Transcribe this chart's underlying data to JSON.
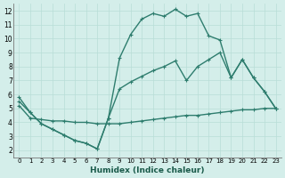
{
  "xlabel": "Humidex (Indice chaleur)",
  "background_color": "#d4eeea",
  "line_color": "#2e7d6e",
  "grid_color": "#b8ddd7",
  "xlim": [
    -0.5,
    23.5
  ],
  "ylim": [
    1.5,
    12.5
  ],
  "xticks": [
    0,
    1,
    2,
    3,
    4,
    5,
    6,
    7,
    8,
    9,
    10,
    11,
    12,
    13,
    14,
    15,
    16,
    17,
    18,
    19,
    20,
    21,
    22,
    23
  ],
  "yticks": [
    2,
    3,
    4,
    5,
    6,
    7,
    8,
    9,
    10,
    11,
    12
  ],
  "line1_x": [
    0,
    1,
    2,
    3,
    4,
    5,
    6,
    7,
    8,
    9,
    10,
    11,
    12,
    13,
    14,
    15,
    16,
    17,
    18,
    19,
    20,
    21,
    22,
    23
  ],
  "line1_y": [
    5.8,
    4.7,
    3.9,
    3.5,
    3.1,
    2.7,
    2.5,
    2.1,
    4.3,
    8.6,
    10.3,
    11.4,
    11.8,
    11.6,
    12.1,
    11.6,
    11.8,
    10.2,
    9.9,
    7.2,
    8.5,
    7.2,
    6.2,
    5.0
  ],
  "line2_x": [
    0,
    1,
    2,
    3,
    4,
    5,
    6,
    7,
    8,
    9,
    10,
    11,
    12,
    13,
    14,
    15,
    16,
    17,
    18,
    19,
    20,
    21,
    22,
    23
  ],
  "line2_y": [
    5.5,
    4.7,
    3.9,
    3.5,
    3.1,
    2.7,
    2.5,
    2.1,
    4.3,
    6.4,
    6.9,
    7.3,
    7.7,
    8.0,
    8.4,
    7.0,
    8.0,
    8.5,
    9.0,
    7.2,
    8.5,
    7.2,
    6.2,
    5.0
  ],
  "line3_x": [
    0,
    1,
    2,
    3,
    4,
    5,
    6,
    7,
    8,
    9,
    10,
    11,
    12,
    13,
    14,
    15,
    16,
    17,
    18,
    19,
    20,
    21,
    22,
    23
  ],
  "line3_y": [
    5.2,
    4.3,
    4.2,
    4.1,
    4.1,
    4.0,
    4.0,
    3.9,
    3.9,
    3.9,
    4.0,
    4.1,
    4.2,
    4.3,
    4.4,
    4.5,
    4.5,
    4.6,
    4.7,
    4.8,
    4.9,
    4.9,
    5.0,
    5.0
  ],
  "marker": "+",
  "markersize": 3.5,
  "linewidth": 1.0
}
